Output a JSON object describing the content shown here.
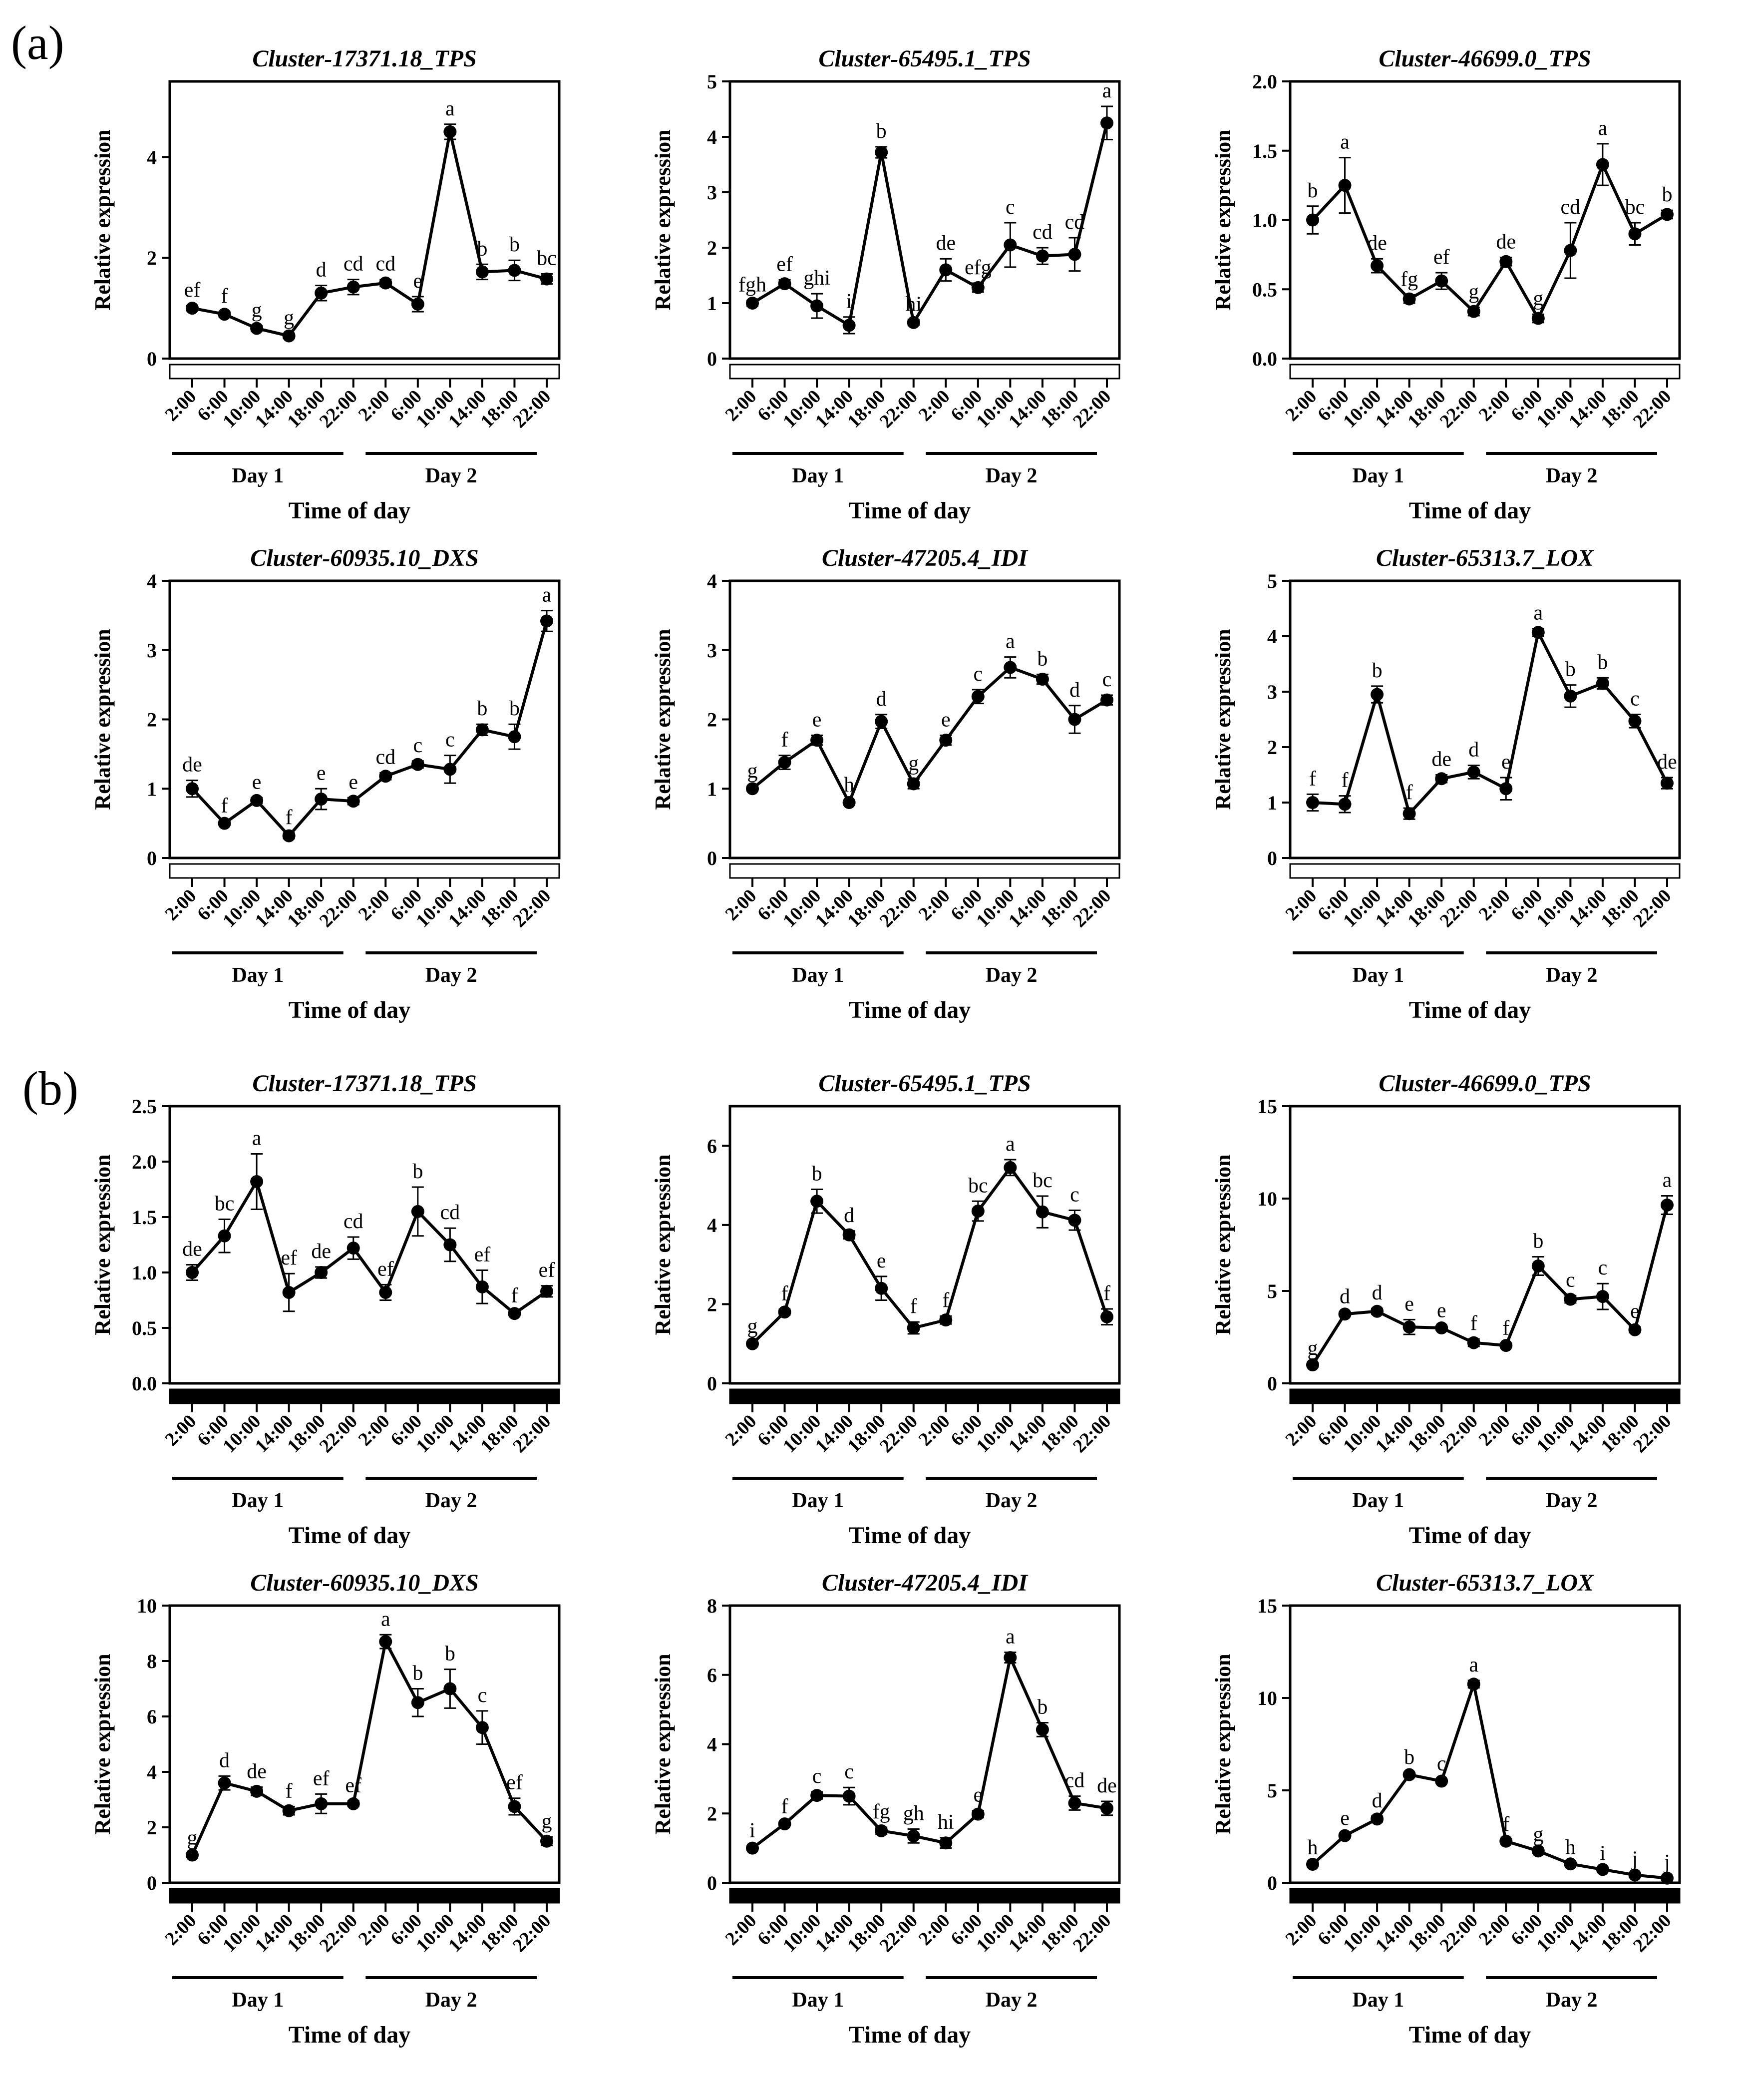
{
  "panel_labels": [
    "(a)",
    "(b)"
  ],
  "colors": {
    "line": "#000000",
    "light_bar": "#ffffff",
    "dark_bar": "#000000"
  },
  "chart_data": [
    {
      "panel": "(a)",
      "type": "line",
      "title": "Cluster-17371.18_TPS",
      "ylabel": "Relative expression",
      "xlabel": "Time of day",
      "categories": [
        "2:00",
        "6:00",
        "10:00",
        "14:00",
        "18:00",
        "22:00",
        "2:00",
        "6:00",
        "10:00",
        "14:00",
        "18:00",
        "22:00"
      ],
      "days": [
        "Day 1",
        "Day 2"
      ],
      "bar": "light",
      "yticks": [
        "0",
        "2",
        "4"
      ],
      "ylim": [
        0,
        5.5
      ],
      "values": [
        1.0,
        0.88,
        0.6,
        0.45,
        1.3,
        1.42,
        1.5,
        1.08,
        4.5,
        1.72,
        1.75,
        1.58
      ],
      "errors": [
        0.05,
        0.05,
        0.05,
        0.05,
        0.15,
        0.15,
        0.07,
        0.15,
        0.15,
        0.15,
        0.2,
        0.1
      ],
      "labels": [
        "ef",
        "f",
        "g",
        "g",
        "d",
        "cd",
        "cd",
        "e",
        "a",
        "b",
        "b",
        "bc"
      ]
    },
    {
      "panel": "(a)",
      "type": "line",
      "title": "Cluster-65495.1_TPS",
      "ylabel": "Relative expression",
      "xlabel": "Time of day",
      "categories": [
        "2:00",
        "6:00",
        "10:00",
        "14:00",
        "18:00",
        "22:00",
        "2:00",
        "6:00",
        "10:00",
        "14:00",
        "18:00",
        "22:00"
      ],
      "days": [
        "Day 1",
        "Day 2"
      ],
      "bar": "light",
      "yticks": [
        "0",
        "1",
        "2",
        "3",
        "4",
        "5"
      ],
      "ylim": [
        0,
        5
      ],
      "values": [
        1.0,
        1.35,
        0.95,
        0.6,
        3.72,
        0.65,
        1.6,
        1.28,
        2.05,
        1.85,
        1.88,
        4.25
      ],
      "errors": [
        0.05,
        0.07,
        0.22,
        0.15,
        0.1,
        0.05,
        0.2,
        0.08,
        0.4,
        0.15,
        0.3,
        0.3
      ],
      "labels": [
        "fgh",
        "ef",
        "ghi",
        "i",
        "b",
        "hi",
        "de",
        "efg",
        "c",
        "cd",
        "cd",
        "a"
      ]
    },
    {
      "panel": "(a)",
      "type": "line",
      "title": "Cluster-46699.0_TPS",
      "ylabel": "Relative expression",
      "xlabel": "Time of day",
      "categories": [
        "2:00",
        "6:00",
        "10:00",
        "14:00",
        "18:00",
        "22:00",
        "2:00",
        "6:00",
        "10:00",
        "14:00",
        "18:00",
        "22:00"
      ],
      "days": [
        "Day 1",
        "Day 2"
      ],
      "bar": "light",
      "yticks": [
        "0.0",
        "0.5",
        "1.0",
        "1.5",
        "2.0"
      ],
      "ylim": [
        0,
        2
      ],
      "values": [
        1.0,
        1.25,
        0.67,
        0.43,
        0.56,
        0.34,
        0.7,
        0.29,
        0.78,
        1.4,
        0.9,
        1.04
      ],
      "errors": [
        0.1,
        0.2,
        0.05,
        0.03,
        0.06,
        0.03,
        0.03,
        0.03,
        0.2,
        0.15,
        0.08,
        0.03
      ],
      "labels": [
        "b",
        "a",
        "de",
        "fg",
        "ef",
        "g",
        "de",
        "g",
        "cd",
        "a",
        "bc",
        "b"
      ]
    },
    {
      "panel": "(a)",
      "type": "line",
      "title": "Cluster-60935.10_DXS",
      "ylabel": "Relative expression",
      "xlabel": "Time of day",
      "categories": [
        "2:00",
        "6:00",
        "10:00",
        "14:00",
        "18:00",
        "22:00",
        "2:00",
        "6:00",
        "10:00",
        "14:00",
        "18:00",
        "22:00"
      ],
      "days": [
        "Day 1",
        "Day 2"
      ],
      "bar": "light",
      "yticks": [
        "0",
        "1",
        "2",
        "3",
        "4"
      ],
      "ylim": [
        0,
        4
      ],
      "values": [
        1.0,
        0.5,
        0.83,
        0.32,
        0.85,
        0.82,
        1.18,
        1.35,
        1.28,
        1.85,
        1.75,
        3.42
      ],
      "errors": [
        0.12,
        0.03,
        0.04,
        0.04,
        0.15,
        0.05,
        0.05,
        0.05,
        0.2,
        0.08,
        0.18,
        0.15
      ],
      "labels": [
        "de",
        "f",
        "e",
        "f",
        "e",
        "e",
        "cd",
        "c",
        "c",
        "b",
        "b",
        "a"
      ]
    },
    {
      "panel": "(a)",
      "type": "line",
      "title": "Cluster-47205.4_IDI",
      "ylabel": "Relative expression",
      "xlabel": "Time of day",
      "categories": [
        "2:00",
        "6:00",
        "10:00",
        "14:00",
        "18:00",
        "22:00",
        "2:00",
        "6:00",
        "10:00",
        "14:00",
        "18:00",
        "22:00"
      ],
      "days": [
        "Day 1",
        "Day 2"
      ],
      "bar": "light",
      "yticks": [
        "0",
        "1",
        "2",
        "3",
        "4"
      ],
      "ylim": [
        0,
        4
      ],
      "values": [
        1.0,
        1.38,
        1.7,
        0.8,
        1.97,
        1.07,
        1.7,
        2.33,
        2.75,
        2.58,
        2.0,
        2.28
      ],
      "errors": [
        0.03,
        0.1,
        0.07,
        0.03,
        0.1,
        0.07,
        0.07,
        0.1,
        0.15,
        0.07,
        0.2,
        0.07
      ],
      "labels": [
        "g",
        "f",
        "e",
        "h",
        "d",
        "g",
        "e",
        "c",
        "a",
        "b",
        "d",
        "c"
      ]
    },
    {
      "panel": "(a)",
      "type": "line",
      "title": "Cluster-65313.7_LOX",
      "ylabel": "Relative expression",
      "xlabel": "Time of day",
      "categories": [
        "2:00",
        "6:00",
        "10:00",
        "14:00",
        "18:00",
        "22:00",
        "2:00",
        "6:00",
        "10:00",
        "14:00",
        "18:00",
        "22:00"
      ],
      "days": [
        "Day 1",
        "Day 2"
      ],
      "bar": "light",
      "yticks": [
        "0",
        "1",
        "2",
        "3",
        "4",
        "5"
      ],
      "ylim": [
        0,
        5
      ],
      "values": [
        1.0,
        0.97,
        2.95,
        0.8,
        1.43,
        1.55,
        1.25,
        4.07,
        2.92,
        3.15,
        2.47,
        1.35
      ],
      "errors": [
        0.15,
        0.15,
        0.15,
        0.1,
        0.07,
        0.12,
        0.2,
        0.07,
        0.2,
        0.1,
        0.12,
        0.1
      ],
      "labels": [
        "f",
        "f",
        "b",
        "f",
        "de",
        "d",
        "e",
        "a",
        "b",
        "b",
        "c",
        "de"
      ]
    },
    {
      "panel": "(b)",
      "type": "line",
      "title": "Cluster-17371.18_TPS",
      "ylabel": "Relative expression",
      "xlabel": "Time of day",
      "categories": [
        "2:00",
        "6:00",
        "10:00",
        "14:00",
        "18:00",
        "22:00",
        "2:00",
        "6:00",
        "10:00",
        "14:00",
        "18:00",
        "22:00"
      ],
      "days": [
        "Day 1",
        "Day 2"
      ],
      "bar": "dark",
      "yticks": [
        "0.0",
        "0.5",
        "1.0",
        "1.5",
        "2.0",
        "2.5"
      ],
      "ylim": [
        0,
        2.5
      ],
      "values": [
        1.0,
        1.33,
        1.82,
        0.82,
        1.0,
        1.22,
        0.82,
        1.55,
        1.25,
        0.87,
        0.63,
        0.83
      ],
      "errors": [
        0.07,
        0.15,
        0.25,
        0.17,
        0.05,
        0.1,
        0.07,
        0.22,
        0.15,
        0.15,
        0.02,
        0.05
      ],
      "labels": [
        "de",
        "bc",
        "a",
        "ef",
        "de",
        "cd",
        "ef",
        "b",
        "cd",
        "ef",
        "f",
        "ef"
      ]
    },
    {
      "panel": "(b)",
      "type": "line",
      "title": "Cluster-65495.1_TPS",
      "ylabel": "Relative expression",
      "xlabel": "Time of day",
      "categories": [
        "2:00",
        "6:00",
        "10:00",
        "14:00",
        "18:00",
        "22:00",
        "2:00",
        "6:00",
        "10:00",
        "14:00",
        "18:00",
        "22:00"
      ],
      "days": [
        "Day 1",
        "Day 2"
      ],
      "bar": "dark",
      "yticks": [
        "0",
        "2",
        "4",
        "6"
      ],
      "ylim": [
        0,
        7
      ],
      "values": [
        1.0,
        1.8,
        4.6,
        3.75,
        2.4,
        1.4,
        1.6,
        4.35,
        5.45,
        4.33,
        4.12,
        1.68
      ],
      "errors": [
        0.05,
        0.07,
        0.3,
        0.1,
        0.3,
        0.15,
        0.1,
        0.25,
        0.2,
        0.4,
        0.25,
        0.2
      ],
      "labels": [
        "g",
        "f",
        "b",
        "d",
        "e",
        "f",
        "f",
        "bc",
        "a",
        "bc",
        "c",
        "f"
      ]
    },
    {
      "panel": "(b)",
      "type": "line",
      "title": "Cluster-46699.0_TPS",
      "ylabel": "Relative expression",
      "xlabel": "Time of day",
      "categories": [
        "2:00",
        "6:00",
        "10:00",
        "14:00",
        "18:00",
        "22:00",
        "2:00",
        "6:00",
        "10:00",
        "14:00",
        "18:00",
        "22:00"
      ],
      "days": [
        "Day 1",
        "Day 2"
      ],
      "bar": "dark",
      "yticks": [
        "0",
        "5",
        "10",
        "15"
      ],
      "ylim": [
        0,
        15
      ],
      "values": [
        1.0,
        3.75,
        3.9,
        3.05,
        3.0,
        2.2,
        2.05,
        6.35,
        4.55,
        4.7,
        2.9,
        9.65
      ],
      "errors": [
        0.05,
        0.1,
        0.15,
        0.4,
        0.1,
        0.2,
        0.1,
        0.5,
        0.2,
        0.7,
        0.15,
        0.5
      ],
      "labels": [
        "g",
        "d",
        "d",
        "e",
        "e",
        "f",
        "f",
        "b",
        "c",
        "c",
        "e",
        "a"
      ]
    },
    {
      "panel": "(b)",
      "type": "line",
      "title": "Cluster-60935.10_DXS",
      "ylabel": "Relative expression",
      "xlabel": "Time of day",
      "categories": [
        "2:00",
        "6:00",
        "10:00",
        "14:00",
        "18:00",
        "22:00",
        "2:00",
        "6:00",
        "10:00",
        "14:00",
        "18:00",
        "22:00"
      ],
      "days": [
        "Day 1",
        "Day 2"
      ],
      "bar": "dark",
      "yticks": [
        "0",
        "2",
        "4",
        "6",
        "8",
        "10"
      ],
      "ylim": [
        0,
        10
      ],
      "values": [
        1.0,
        3.6,
        3.3,
        2.6,
        2.85,
        2.85,
        8.7,
        6.5,
        7.0,
        5.6,
        2.75,
        1.5
      ],
      "errors": [
        0.05,
        0.25,
        0.15,
        0.15,
        0.35,
        0.1,
        0.25,
        0.5,
        0.7,
        0.6,
        0.3,
        0.15
      ],
      "labels": [
        "g",
        "d",
        "de",
        "f",
        "ef",
        "ef",
        "a",
        "b",
        "b",
        "c",
        "ef",
        "g"
      ]
    },
    {
      "panel": "(b)",
      "type": "line",
      "title": "Cluster-47205.4_IDI",
      "ylabel": "Relative expression",
      "xlabel": "Time of day",
      "categories": [
        "2:00",
        "6:00",
        "10:00",
        "14:00",
        "18:00",
        "22:00",
        "2:00",
        "6:00",
        "10:00",
        "14:00",
        "18:00",
        "22:00"
      ],
      "days": [
        "Day 1",
        "Day 2"
      ],
      "bar": "dark",
      "yticks": [
        "0",
        "2",
        "4",
        "6",
        "8"
      ],
      "ylim": [
        0,
        8
      ],
      "values": [
        1.0,
        1.7,
        2.52,
        2.5,
        1.5,
        1.35,
        1.15,
        1.98,
        6.5,
        4.42,
        2.3,
        2.15
      ],
      "errors": [
        0.05,
        0.05,
        0.1,
        0.25,
        0.1,
        0.2,
        0.15,
        0.1,
        0.15,
        0.2,
        0.2,
        0.2
      ],
      "labels": [
        "i",
        "f",
        "c",
        "c",
        "fg",
        "gh",
        "hi",
        "e",
        "a",
        "b",
        "cd",
        "de"
      ]
    },
    {
      "panel": "(b)",
      "type": "line",
      "title": "Cluster-65313.7_LOX",
      "ylabel": "Relative expression",
      "xlabel": "Time of day",
      "categories": [
        "2:00",
        "6:00",
        "10:00",
        "14:00",
        "18:00",
        "22:00",
        "2:00",
        "6:00",
        "10:00",
        "14:00",
        "18:00",
        "22:00"
      ],
      "days": [
        "Day 1",
        "Day 2"
      ],
      "bar": "dark",
      "yticks": [
        "0",
        "5",
        "10",
        "15"
      ],
      "ylim": [
        0,
        15
      ],
      "values": [
        1.0,
        2.55,
        3.45,
        5.85,
        5.5,
        10.75,
        2.25,
        1.72,
        1.02,
        0.72,
        0.42,
        0.25
      ],
      "errors": [
        0.05,
        0.1,
        0.15,
        0.1,
        0.1,
        0.2,
        0.07,
        0.05,
        0.05,
        0.03,
        0.03,
        0.02
      ],
      "labels": [
        "h",
        "e",
        "d",
        "b",
        "c",
        "a",
        "f",
        "g",
        "h",
        "i",
        "j",
        "j"
      ]
    }
  ]
}
